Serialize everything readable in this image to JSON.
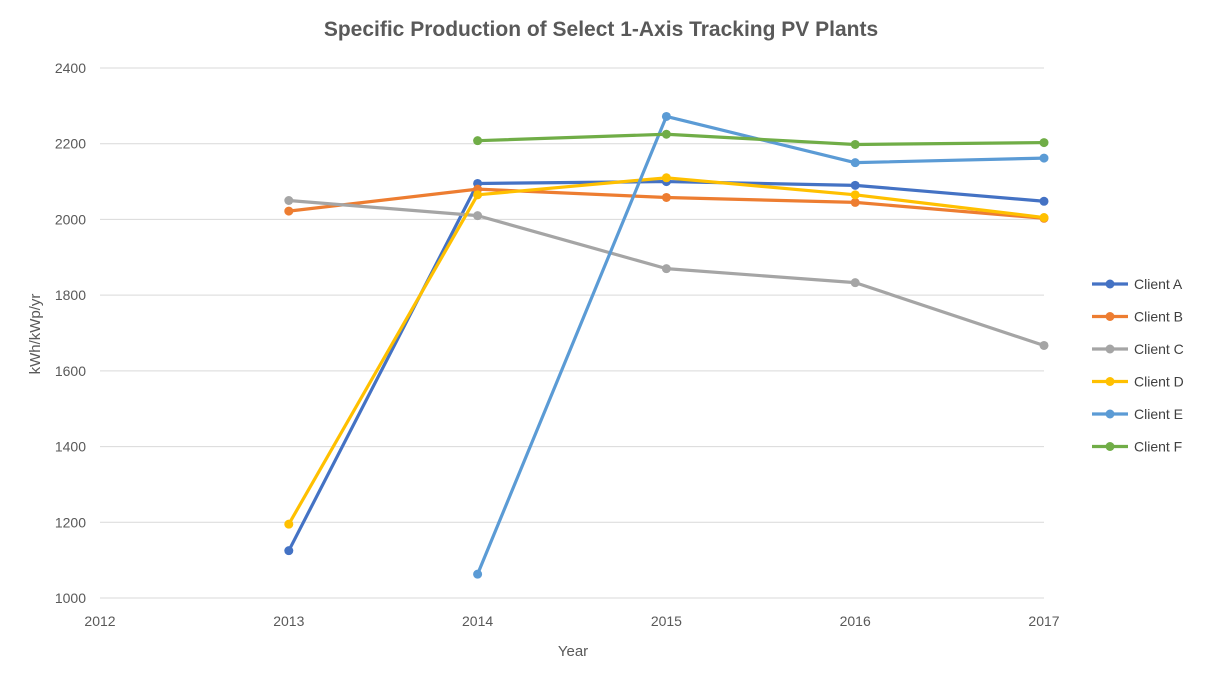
{
  "chart_data": {
    "type": "line",
    "title": "Specific Production of Select 1-Axis Tracking PV Plants",
    "xlabel": "Year",
    "ylabel": "kWh/kWp/yr",
    "x": [
      2012,
      2013,
      2014,
      2015,
      2016,
      2017
    ],
    "xlim": [
      2012,
      2017
    ],
    "ylim": [
      1000,
      2400
    ],
    "yticks": [
      1000,
      1200,
      1400,
      1600,
      1800,
      2000,
      2200,
      2400
    ],
    "grid": true,
    "legend_position": "right",
    "series": [
      {
        "name": "Client A",
        "color": "#4472C4",
        "values": [
          null,
          1125,
          2095,
          2100,
          2090,
          2048
        ]
      },
      {
        "name": "Client B",
        "color": "#ED7D31",
        "values": [
          null,
          2022,
          2080,
          2058,
          2045,
          2003
        ]
      },
      {
        "name": "Client C",
        "color": "#A5A5A5",
        "values": [
          null,
          2050,
          2010,
          1870,
          1833,
          1667
        ]
      },
      {
        "name": "Client D",
        "color": "#FFC000",
        "values": [
          null,
          1195,
          2065,
          2110,
          2065,
          2005
        ]
      },
      {
        "name": "Client E",
        "color": "#5B9BD5",
        "values": [
          null,
          null,
          1063,
          2272,
          2150,
          2162
        ]
      },
      {
        "name": "Client F",
        "color": "#70AD47",
        "values": [
          null,
          null,
          2208,
          2225,
          2198,
          2203
        ]
      }
    ]
  }
}
